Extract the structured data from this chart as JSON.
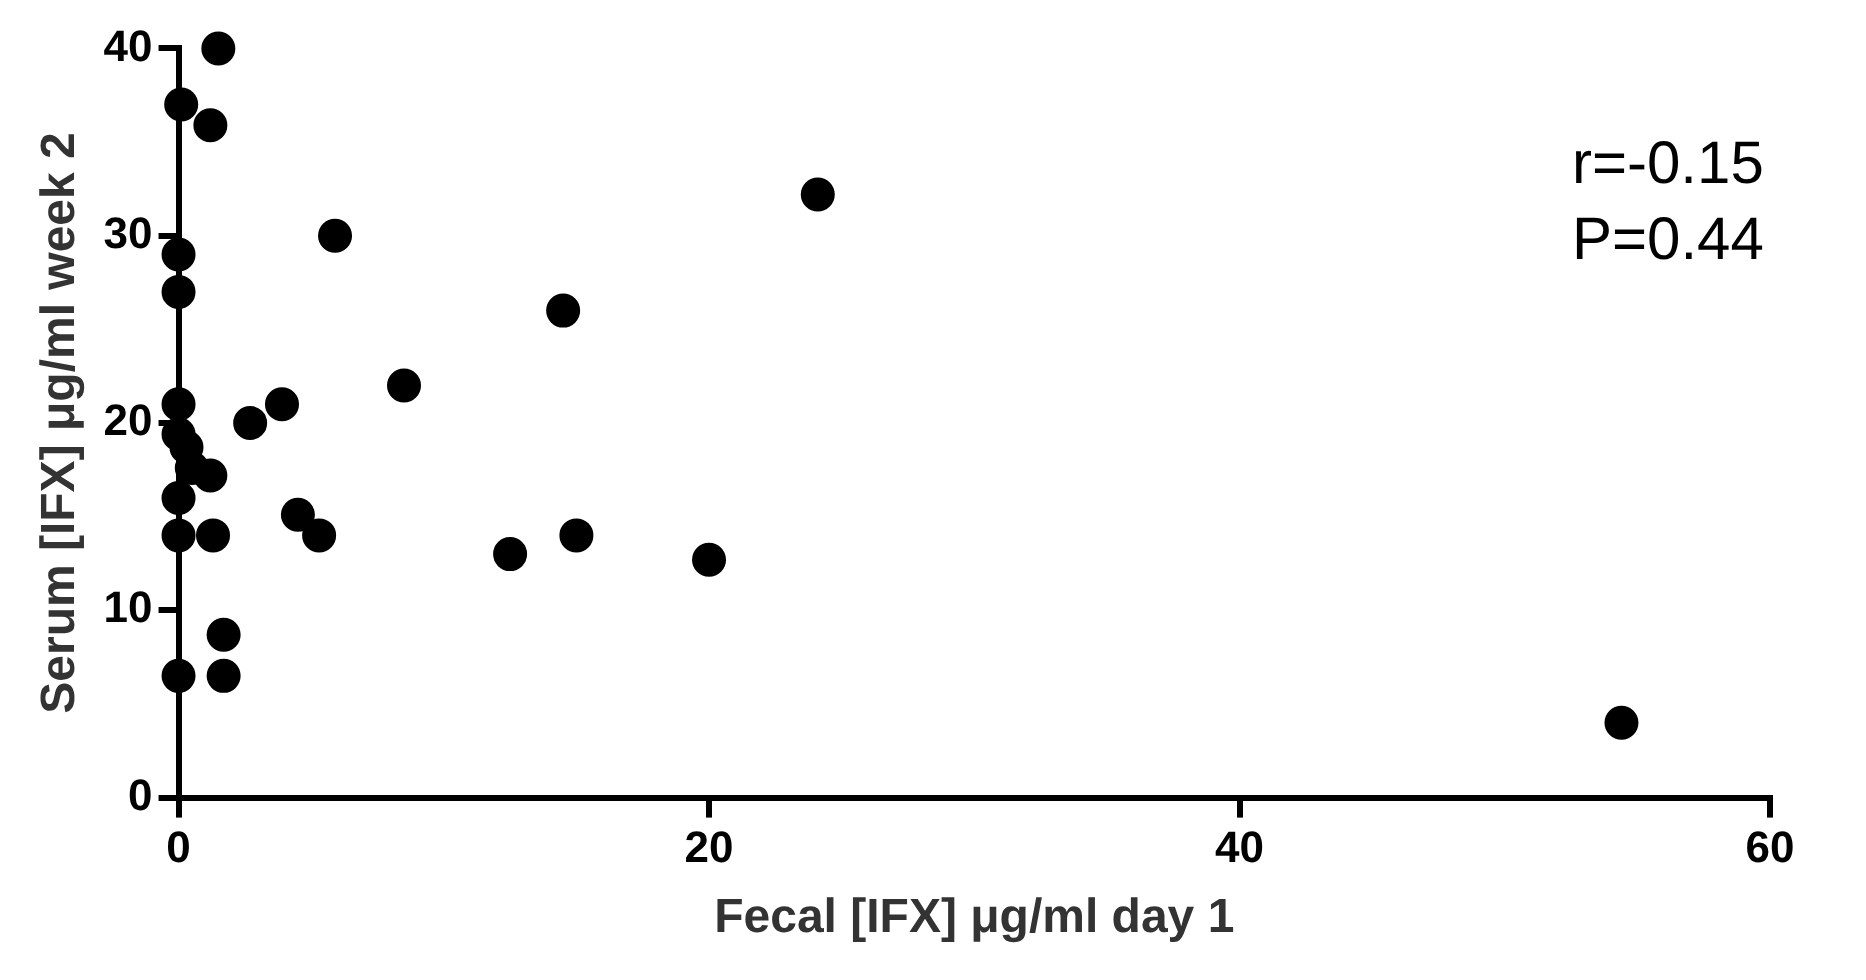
{
  "chart_data": {
    "type": "scatter",
    "xlabel": "Fecal [IFX] μg/ml day 1",
    "ylabel": "Serum [IFX] μg/ml week 2",
    "annotations": [
      "r=-0.15",
      "P=0.44"
    ],
    "x": [
      1.5,
      0.1,
      1.2,
      5.9,
      0,
      0,
      14.5,
      8.5,
      0,
      3.9,
      2.7,
      0,
      0.3,
      1.2,
      0.5,
      0,
      4.5,
      5.3,
      0,
      1.3,
      12.5,
      15,
      20,
      1.7,
      0,
      1.7,
      24.1,
      54.4
    ],
    "series": [
      {
        "color": "#000000",
        "values": [
          40,
          37,
          35.9,
          30,
          29,
          27,
          26,
          22,
          21,
          21,
          20,
          19.4,
          18.7,
          17.2,
          17.6,
          16,
          15.1,
          14,
          14,
          14,
          13,
          14,
          12.7,
          8.7,
          6.5,
          6.5,
          32.2,
          4
        ]
      }
    ],
    "xlim": [
      0,
      60
    ],
    "xticks": [
      0,
      20,
      40,
      60
    ],
    "ylim": [
      0,
      40
    ],
    "yticks": [
      0,
      10,
      20,
      30,
      40
    ],
    "grid": false,
    "legend": false,
    "marker": "circle"
  }
}
